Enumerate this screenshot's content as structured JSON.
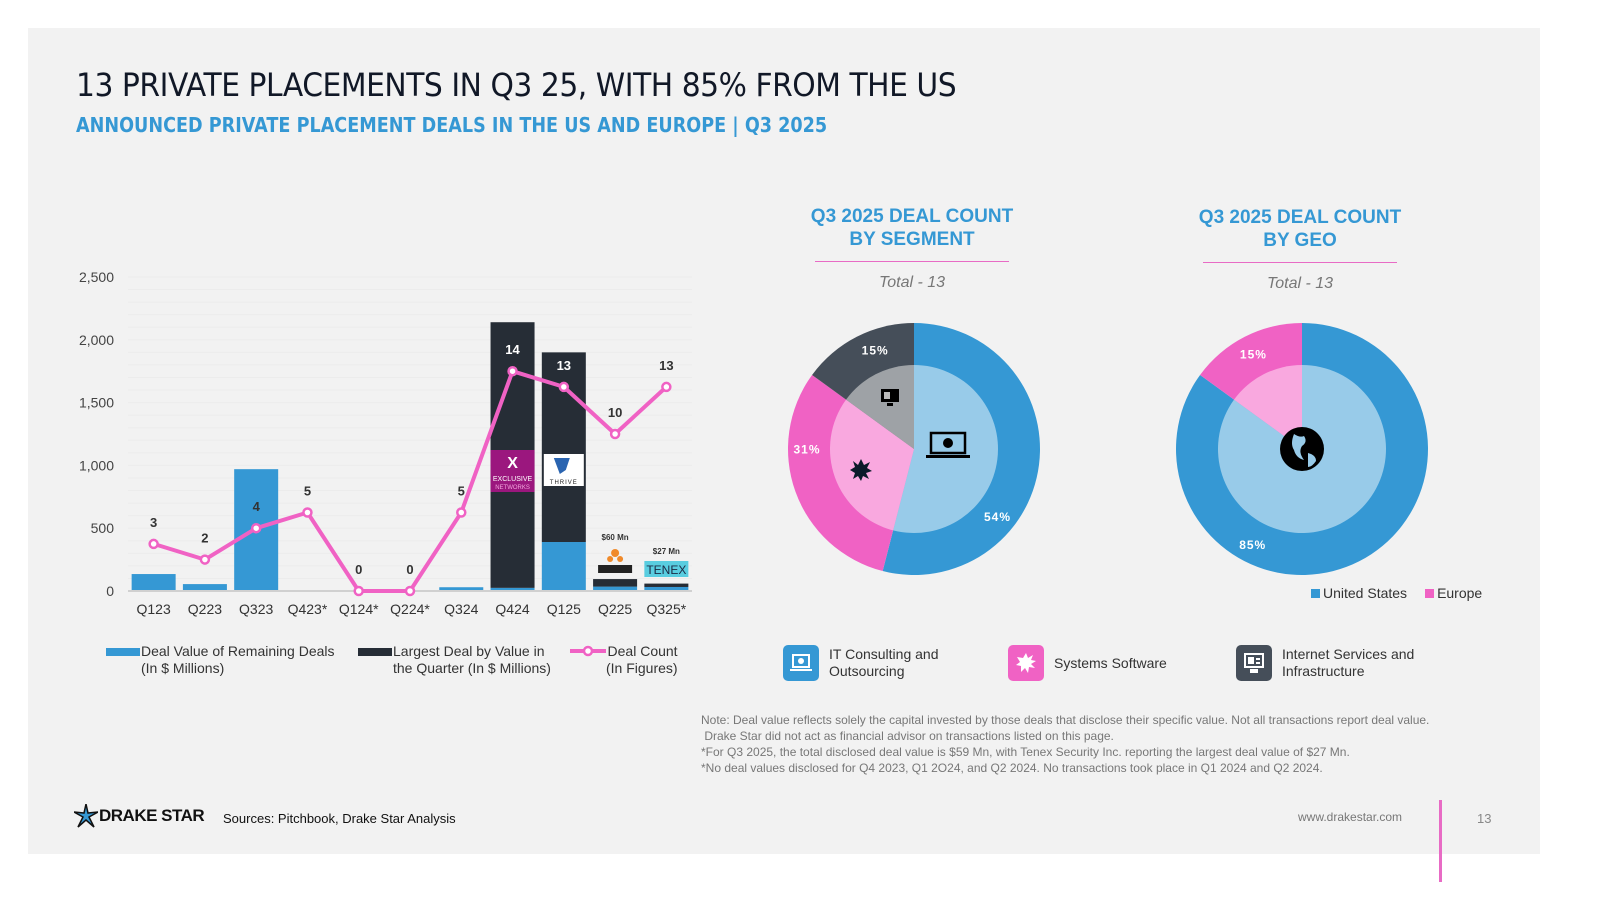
{
  "header": {
    "title": "13 PRIVATE PLACEMENTS IN Q3 25, WITH 85% FROM THE US",
    "subtitle": "ANNOUNCED PRIVATE PLACEMENT DEALS IN THE US AND EUROPE | Q3 2025"
  },
  "colors": {
    "blue": "#3598d4",
    "light_blue": "#98cbe9",
    "dark": "#262d36",
    "pink": "#f062c4",
    "light_pink": "#f9a8df",
    "slate": "#454e59",
    "grey": "#9ea2a6"
  },
  "chart_data": [
    {
      "type": "bar",
      "subtype": "stacked bar + line (dual)",
      "title": "",
      "categories": [
        "Q123",
        "Q223",
        "Q323",
        "Q423*",
        "Q124*",
        "Q224*",
        "Q324",
        "Q424",
        "Q125",
        "Q225",
        "Q325*"
      ],
      "ylim": [
        0,
        2500
      ],
      "yticks": [
        "0",
        "500",
        "1,000",
        "1,500",
        "2,000",
        "2,500"
      ],
      "series": [
        {
          "name": "Deal Value of Remaining Deals (In $ Millions)",
          "kind": "bar",
          "values": [
            135,
            55,
            970,
            0,
            0,
            0,
            30,
            25,
            390,
            35,
            32
          ]
        },
        {
          "name": "Largest Deal by Value in the Quarter (In $ Millions)",
          "kind": "bar",
          "values": [
            0,
            0,
            0,
            0,
            0,
            0,
            0,
            2115,
            1510,
            60,
            27
          ]
        },
        {
          "name": "Deal Count (In Figures)",
          "kind": "line",
          "values": [
            3,
            2,
            4,
            5,
            0,
            0,
            5,
            14,
            13,
            10,
            13
          ]
        }
      ],
      "annotations": [
        {
          "category": "Q424",
          "text": "EXCLUSIVE NETWORKS"
        },
        {
          "category": "Q125",
          "text": "THRIVE"
        },
        {
          "category": "Q225",
          "text": "$60 Mn",
          "logo": "SCRAB IT"
        },
        {
          "category": "Q325*",
          "text": "$27 Mn",
          "logo": "TENEX"
        }
      ],
      "legend": [
        {
          "label_1": "Deal Value of Remaining Deals",
          "label_2": "(In $ Millions)"
        },
        {
          "label_1": "Largest Deal by Value in",
          "label_2": "the Quarter (In $ Millions)"
        },
        {
          "label_1": "Deal Count",
          "label_2": "(In Figures)"
        }
      ],
      "legend_position": "bottom",
      "grid": true
    },
    {
      "type": "pie",
      "subtype": "donut",
      "title_1": "Q3 2025 DEAL COUNT",
      "title_2": "BY SEGMENT",
      "total": "Total - 13",
      "slices": [
        {
          "label": "IT Consulting and Outsourcing",
          "value": 54,
          "display": "54%"
        },
        {
          "label": "Systems Software",
          "value": 31,
          "display": "31%"
        },
        {
          "label": "Internet Services and Infrastructure",
          "value": 15,
          "display": "15%"
        }
      ],
      "legend_position": "bottom"
    },
    {
      "type": "pie",
      "subtype": "donut",
      "title_1": "Q3 2025 DEAL COUNT",
      "title_2": "BY GEO",
      "total": "Total - 13",
      "slices": [
        {
          "label": "United States",
          "value": 85,
          "display": "85%"
        },
        {
          "label": "Europe",
          "value": 15,
          "display": "15%"
        }
      ],
      "legend_position": "bottom-right"
    }
  ],
  "segment_legend": [
    {
      "label_1": "IT Consulting and",
      "label_2": "Outsourcing",
      "icon": "laptop-icon"
    },
    {
      "label_1": "Systems Software",
      "label_2": "",
      "icon": "gear-burst-icon"
    },
    {
      "label_1": "Internet Services and",
      "label_2": "Infrastructure",
      "icon": "monitor-icon"
    }
  ],
  "notes": [
    "Note: Deal value reflects solely the capital invested by those deals that disclose their specific value. Not all transactions report deal value.",
    " Drake Star did not act as financial advisor on transactions listed on this page.",
    "*For Q3 2025, the total disclosed deal value is $59 Mn, with Tenex Security Inc. reporting the largest deal value of $27 Mn.",
    "*No deal values disclosed for Q4 2023, Q1 2O24, and Q2 2024. No transactions took place in Q1 2024 and Q2 2024."
  ],
  "footer": {
    "logo_text": "DRAKE STAR",
    "sources": "Sources: Pitchbook, Drake Star Analysis",
    "url": "www.drakestar.com",
    "page_number": "13"
  }
}
